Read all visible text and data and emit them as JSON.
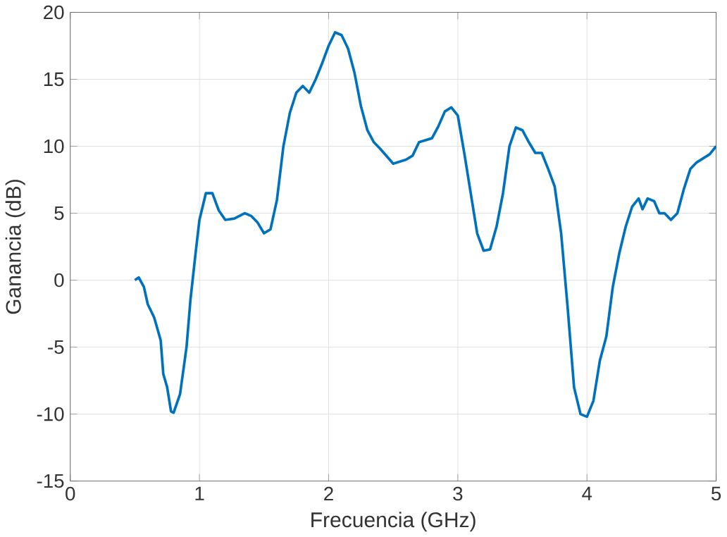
{
  "chart_data": {
    "type": "line",
    "xlabel": "Frecuencia (GHz)",
    "ylabel": "Ganancia (dB)",
    "xlim": [
      0,
      5
    ],
    "ylim": [
      -15,
      20
    ],
    "xticks": [
      0,
      1,
      2,
      3,
      4,
      5
    ],
    "yticks": [
      -15,
      -10,
      -5,
      0,
      5,
      10,
      15,
      20
    ],
    "grid": true,
    "series": [
      {
        "color": "#0072bd",
        "x": [
          0.5,
          0.53,
          0.57,
          0.6,
          0.65,
          0.7,
          0.72,
          0.75,
          0.78,
          0.8,
          0.85,
          0.9,
          0.93,
          0.97,
          1.0,
          1.05,
          1.1,
          1.15,
          1.2,
          1.27,
          1.35,
          1.4,
          1.45,
          1.5,
          1.55,
          1.6,
          1.65,
          1.7,
          1.75,
          1.8,
          1.85,
          1.9,
          1.95,
          2.0,
          2.05,
          2.1,
          2.15,
          2.2,
          2.25,
          2.3,
          2.35,
          2.4,
          2.5,
          2.6,
          2.65,
          2.7,
          2.8,
          2.85,
          2.9,
          2.95,
          3.0,
          3.05,
          3.1,
          3.15,
          3.2,
          3.25,
          3.3,
          3.35,
          3.4,
          3.45,
          3.5,
          3.55,
          3.6,
          3.65,
          3.7,
          3.75,
          3.8,
          3.85,
          3.9,
          3.95,
          4.0,
          4.05,
          4.1,
          4.15,
          4.2,
          4.25,
          4.3,
          4.35,
          4.4,
          4.43,
          4.47,
          4.52,
          4.56,
          4.6,
          4.65,
          4.7,
          4.75,
          4.8,
          4.85,
          4.9,
          4.95,
          5.0
        ],
        "values": [
          0.0,
          0.2,
          -0.5,
          -1.8,
          -2.8,
          -4.5,
          -7,
          -8,
          -9.8,
          -9.9,
          -8.5,
          -5,
          -1.5,
          2,
          4.5,
          6.5,
          6.5,
          5.2,
          4.5,
          4.6,
          5,
          4.8,
          4.3,
          3.5,
          3.8,
          6,
          10,
          12.5,
          14,
          14.5,
          14,
          15,
          16.2,
          17.5,
          18.5,
          18.3,
          17.3,
          15.5,
          13,
          11.2,
          10.3,
          9.8,
          8.7,
          9,
          9.3,
          10.3,
          10.6,
          11.5,
          12.6,
          12.9,
          12.3,
          9.5,
          6.5,
          3.5,
          2.2,
          2.3,
          4,
          6.5,
          10,
          11.4,
          11.2,
          10.3,
          9.5,
          9.5,
          8.3,
          7,
          3.5,
          -2,
          -8,
          -10,
          -10.2,
          -9,
          -6,
          -4.2,
          -0.5,
          2,
          4,
          5.5,
          6.1,
          5.3,
          6.1,
          5.9,
          5,
          5,
          4.5,
          5,
          6.8,
          8.3,
          8.8,
          9.1,
          9.4,
          10
        ]
      }
    ]
  }
}
